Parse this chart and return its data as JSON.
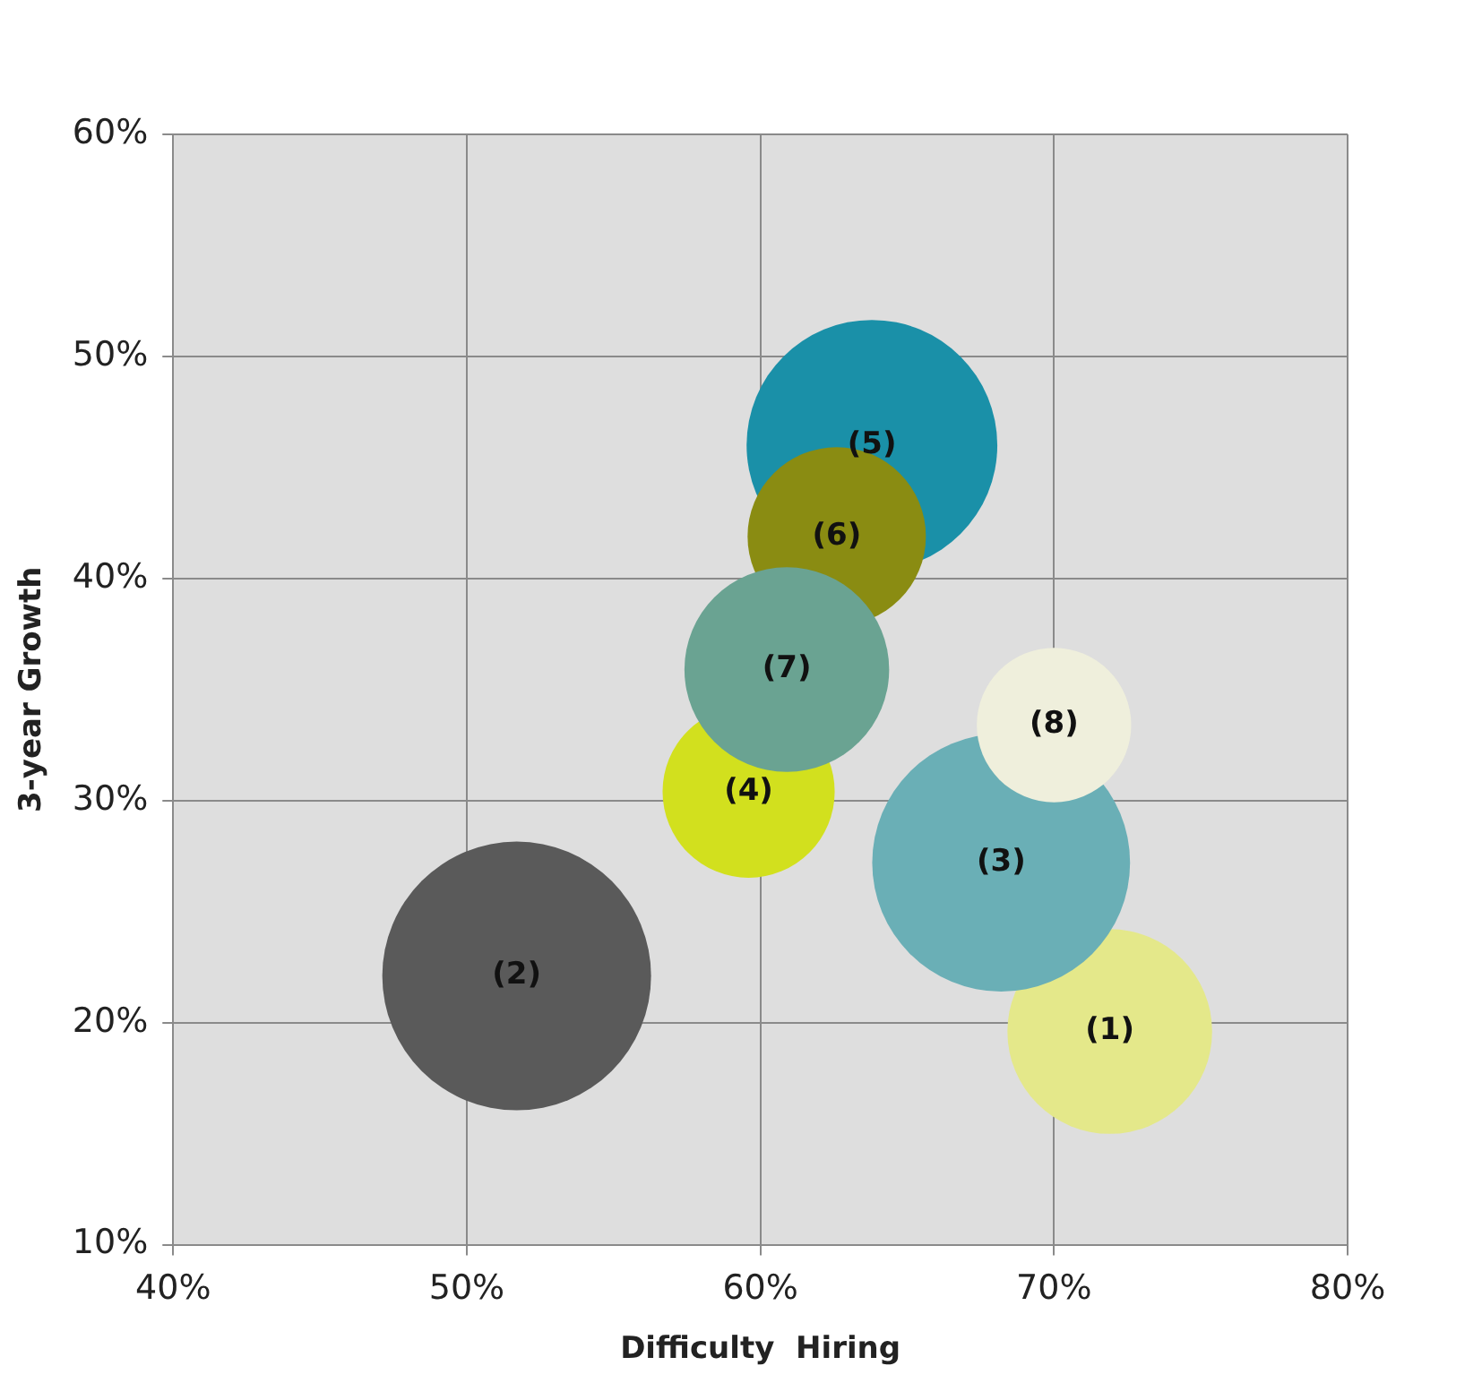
{
  "chart_data": {
    "type": "bubble",
    "xlabel": "Difficulty  Hiring",
    "ylabel": "3-year Growth",
    "xlim": [
      40,
      80
    ],
    "xticks": [
      {
        "value": 40,
        "label": "40%"
      },
      {
        "value": 50,
        "label": "50%"
      },
      {
        "value": 60,
        "label": "60%"
      },
      {
        "value": 70,
        "label": "70%"
      },
      {
        "value": 80,
        "label": "80%"
      }
    ],
    "ylim": [
      10,
      60
    ],
    "yticks": [
      {
        "value": 10,
        "label": "10%"
      },
      {
        "value": 20,
        "label": "20%"
      },
      {
        "value": 30,
        "label": "30%"
      },
      {
        "value": 40,
        "label": "40%"
      },
      {
        "value": 50,
        "label": "50%"
      },
      {
        "value": 60,
        "label": "60%"
      }
    ],
    "grid": true,
    "legend": false,
    "series": [
      {
        "name": "(2)",
        "color": "#5a5a5a",
        "x": [
          51.7
        ],
        "values": [
          22.1
        ],
        "sizes": [
          1
        ]
      },
      {
        "name": "(1)",
        "color": "#e4e88a",
        "x": [
          71.9
        ],
        "values": [
          19.6
        ],
        "sizes": [
          0.58
        ]
      },
      {
        "name": "(3)",
        "color": "#6aafb6",
        "x": [
          68.2
        ],
        "values": [
          27.2
        ],
        "sizes": [
          0.92
        ]
      },
      {
        "name": "(8)",
        "color": "#efefdc",
        "x": [
          70.0
        ],
        "values": [
          33.4
        ],
        "sizes": [
          0.33
        ]
      },
      {
        "name": "(5)",
        "color": "#1a90a8",
        "x": [
          63.8
        ],
        "values": [
          46.0
        ],
        "sizes": [
          0.87
        ]
      },
      {
        "name": "(6)",
        "color": "#8a8c12",
        "x": [
          62.6
        ],
        "values": [
          41.9
        ],
        "sizes": [
          0.44
        ]
      },
      {
        "name": "(4)",
        "color": "#d2e01e",
        "x": [
          59.6
        ],
        "values": [
          30.4
        ],
        "sizes": [
          0.41
        ]
      },
      {
        "name": "(7)",
        "color": "#6aa392",
        "x": [
          60.9
        ],
        "values": [
          35.9
        ],
        "sizes": [
          0.58
        ]
      }
    ]
  }
}
